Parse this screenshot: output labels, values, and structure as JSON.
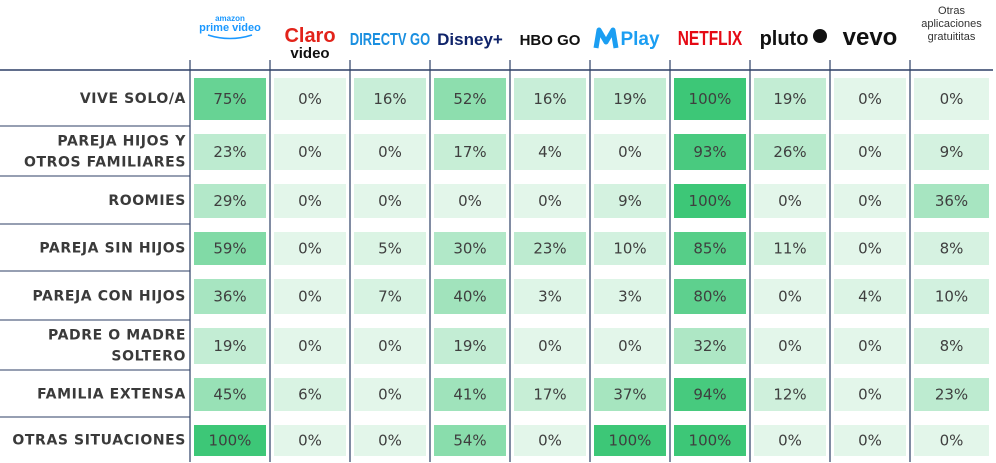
{
  "chart_data": {
    "type": "heatmap",
    "columns": [
      {
        "key": "amazon",
        "line1": "amazon",
        "line2": "prime video",
        "color": "#1a98ff"
      },
      {
        "key": "claro",
        "line1": "Claro",
        "line2": "video",
        "color": "#e2231a"
      },
      {
        "key": "directv",
        "line1": "DIRECTV GO",
        "color": "#1a8fe0"
      },
      {
        "key": "disney",
        "line1": "Disney+",
        "color": "#10246a"
      },
      {
        "key": "hbo",
        "line1": "HBO GO",
        "color": "#111111"
      },
      {
        "key": "movistar",
        "line1": "Play",
        "color": "#1b9ef2"
      },
      {
        "key": "netflix",
        "line1": "NETFLIX",
        "color": "#e50914"
      },
      {
        "key": "pluto",
        "line1": "pluto",
        "color": "#111111"
      },
      {
        "key": "vevo",
        "line1": "vevo",
        "color": "#111111"
      },
      {
        "key": "otras",
        "lines": [
          "Otras",
          "aplicaciones",
          "gratuititas"
        ],
        "color": "#333333"
      }
    ],
    "rows": [
      {
        "label": [
          "VIVE SOLO/A"
        ],
        "values": [
          75,
          0,
          16,
          52,
          16,
          19,
          100,
          19,
          0,
          0
        ]
      },
      {
        "label": [
          "PAREJA HIJOS Y",
          "OTROS FAMILIARES"
        ],
        "values": [
          23,
          0,
          0,
          17,
          4,
          0,
          93,
          26,
          0,
          9
        ]
      },
      {
        "label": [
          "ROOMIES"
        ],
        "values": [
          29,
          0,
          0,
          0,
          0,
          9,
          100,
          0,
          0,
          36
        ]
      },
      {
        "label": [
          "PAREJA SIN HIJOS"
        ],
        "values": [
          59,
          0,
          5,
          30,
          23,
          10,
          85,
          11,
          0,
          8
        ]
      },
      {
        "label": [
          "PAREJA CON HIJOS"
        ],
        "values": [
          36,
          0,
          7,
          40,
          3,
          3,
          80,
          0,
          4,
          10
        ]
      },
      {
        "label": [
          "PADRE O MADRE",
          "SOLTERO"
        ],
        "values": [
          19,
          0,
          0,
          19,
          0,
          0,
          32,
          0,
          0,
          8
        ]
      },
      {
        "label": [
          "FAMILIA EXTENSA"
        ],
        "values": [
          45,
          6,
          0,
          41,
          17,
          37,
          94,
          12,
          0,
          23
        ]
      },
      {
        "label": [
          "OTRAS SITUACIONES"
        ],
        "values": [
          100,
          0,
          0,
          54,
          0,
          100,
          100,
          0,
          0,
          0
        ]
      }
    ],
    "value_suffix": "%",
    "colors": {
      "lightest": "#e3f6ea",
      "darkest": "#3dc777",
      "line": "#2d3f66"
    }
  }
}
